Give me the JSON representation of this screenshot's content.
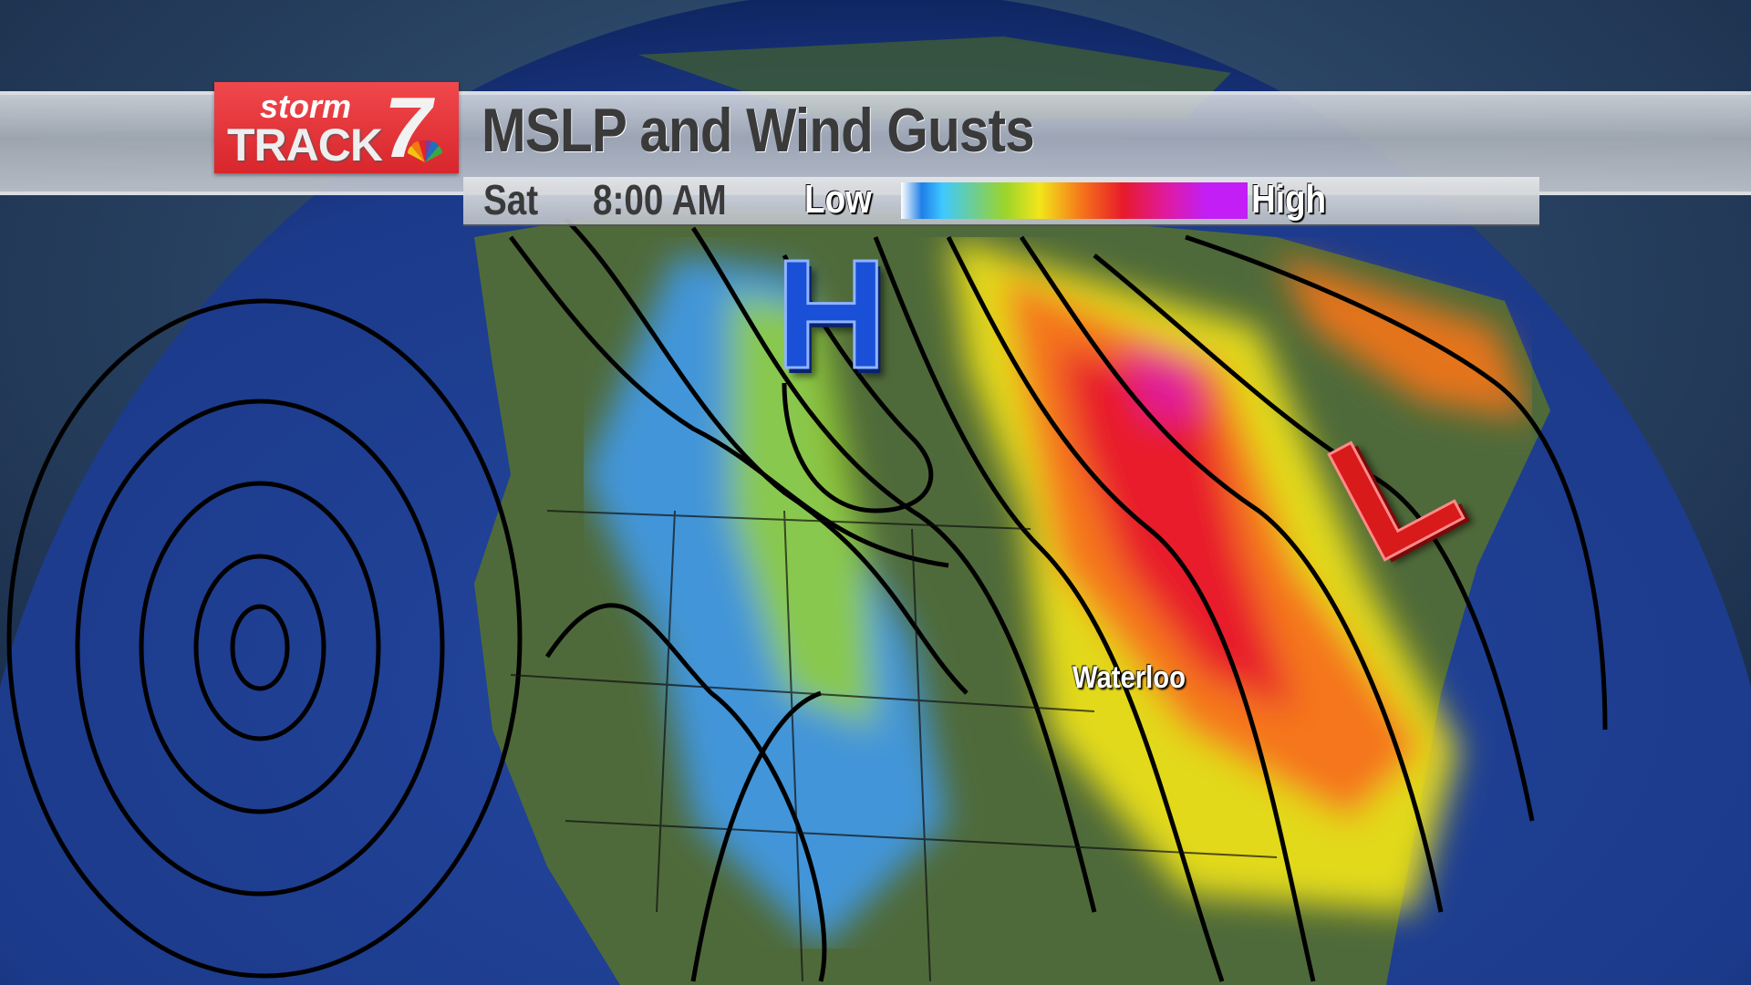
{
  "brand": {
    "logo_text_1": "storm",
    "logo_text_2": "TRACK",
    "logo_text_3": "7"
  },
  "header": {
    "title": "MSLP and Wind Gusts",
    "day": "Sat",
    "time": "8:00 AM"
  },
  "legend": {
    "low_label": "Low",
    "high_label": "High",
    "colors": [
      "#ffffff",
      "#1f7fe8",
      "#3fc8ff",
      "#9bd42a",
      "#f2e61a",
      "#f5761a",
      "#e81a2a",
      "#e01a9a",
      "#c21ef5"
    ]
  },
  "map": {
    "pressure_systems": [
      {
        "label": "H",
        "type": "high",
        "color": "#1a4fd8"
      },
      {
        "label": "L",
        "type": "low",
        "color": "#d81a1a"
      }
    ],
    "city_labels": [
      "Waterloo"
    ],
    "colors": {
      "ocean": "#1e3c8c",
      "land": "#4f6a3a",
      "space": "#1d3350"
    }
  }
}
